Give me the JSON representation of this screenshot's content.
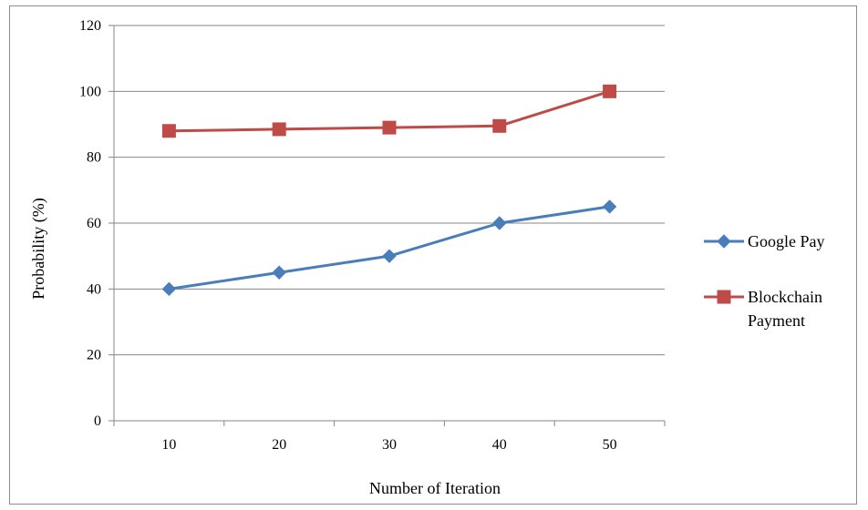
{
  "chart_data": {
    "type": "line",
    "categories": [
      "10",
      "20",
      "30",
      "40",
      "50"
    ],
    "xlabel": "Number of Iteration",
    "ylabel": "Probability (%)",
    "ylim": [
      0,
      120
    ],
    "yticks": [
      0,
      20,
      40,
      60,
      80,
      100,
      120
    ],
    "grid": true,
    "legend_position": "right",
    "series": [
      {
        "name": "Google Pay",
        "name_lines": [
          "Google Pay"
        ],
        "color": "#4a7ebb",
        "marker": "diamond",
        "values": [
          40,
          45,
          50,
          60,
          65
        ]
      },
      {
        "name": "Blockchain Payment",
        "name_lines": [
          "Blockchain",
          "Payment"
        ],
        "color": "#be4b48",
        "marker": "square",
        "values": [
          88,
          88.5,
          89,
          89.5,
          100
        ]
      }
    ]
  }
}
